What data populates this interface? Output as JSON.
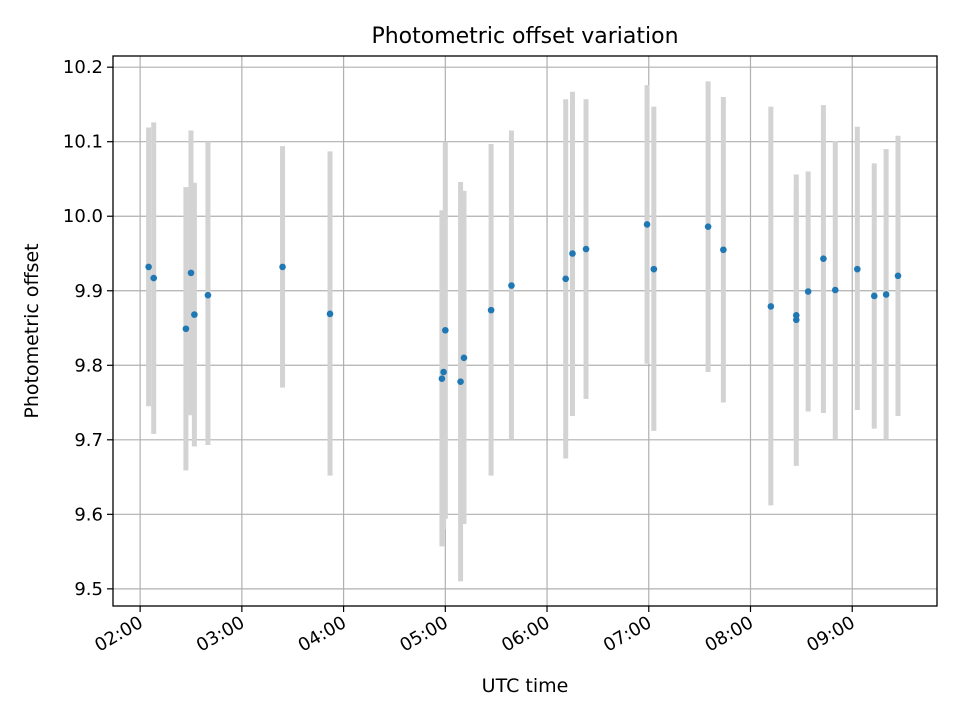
{
  "chart_data": {
    "type": "scatter",
    "title": "Photometric offset variation",
    "xlabel": "UTC time",
    "ylabel": "Photometric offset",
    "x_ticks": [
      "02:00",
      "03:00",
      "04:00",
      "05:00",
      "06:00",
      "07:00",
      "08:00",
      "09:00"
    ],
    "y_ticks": [
      "9.5",
      "9.6",
      "9.7",
      "9.8",
      "9.9",
      "10.0",
      "10.1",
      "10.2"
    ],
    "xlim": [
      "01:44",
      "09:50"
    ],
    "ylim": [
      9.477,
      10.215
    ],
    "grid": true,
    "legend": false,
    "colors": {
      "point": "#1f77b4",
      "errorbar": "#d3d3d3",
      "grid": "#b0b0b0"
    },
    "points": [
      {
        "x": "02:05",
        "y": 9.932,
        "ylow": 9.745,
        "yhigh": 10.119
      },
      {
        "x": "02:08",
        "y": 9.917,
        "ylow": 9.708,
        "yhigh": 10.126
      },
      {
        "x": "02:27",
        "y": 9.849,
        "ylow": 9.659,
        "yhigh": 10.039
      },
      {
        "x": "02:30",
        "y": 9.924,
        "ylow": 9.733,
        "yhigh": 10.115
      },
      {
        "x": "02:32",
        "y": 9.868,
        "ylow": 9.691,
        "yhigh": 10.045
      },
      {
        "x": "02:40",
        "y": 9.894,
        "ylow": 9.693,
        "yhigh": 10.1
      },
      {
        "x": "03:24",
        "y": 9.932,
        "ylow": 9.77,
        "yhigh": 10.094
      },
      {
        "x": "03:52",
        "y": 9.869,
        "ylow": 9.652,
        "yhigh": 10.087
      },
      {
        "x": "04:58",
        "y": 9.782,
        "ylow": 9.557,
        "yhigh": 10.008
      },
      {
        "x": "04:59",
        "y": 9.791,
        "ylow": 9.58,
        "yhigh": 10.002
      },
      {
        "x": "05:00",
        "y": 9.847,
        "ylow": 9.594,
        "yhigh": 10.1
      },
      {
        "x": "05:09",
        "y": 9.778,
        "ylow": 9.51,
        "yhigh": 10.046
      },
      {
        "x": "05:11",
        "y": 9.81,
        "ylow": 9.587,
        "yhigh": 10.034
      },
      {
        "x": "05:27",
        "y": 9.874,
        "ylow": 9.652,
        "yhigh": 10.097
      },
      {
        "x": "05:39",
        "y": 9.907,
        "ylow": 9.7,
        "yhigh": 10.115
      },
      {
        "x": "06:11",
        "y": 9.916,
        "ylow": 9.675,
        "yhigh": 10.157
      },
      {
        "x": "06:15",
        "y": 9.95,
        "ylow": 9.732,
        "yhigh": 10.167
      },
      {
        "x": "06:23",
        "y": 9.956,
        "ylow": 9.755,
        "yhigh": 10.157
      },
      {
        "x": "06:59",
        "y": 9.989,
        "ylow": 9.802,
        "yhigh": 10.176
      },
      {
        "x": "07:03",
        "y": 9.929,
        "ylow": 9.712,
        "yhigh": 10.147
      },
      {
        "x": "07:35",
        "y": 9.986,
        "ylow": 9.791,
        "yhigh": 10.181
      },
      {
        "x": "07:44",
        "y": 9.955,
        "ylow": 9.75,
        "yhigh": 10.16
      },
      {
        "x": "08:12",
        "y": 9.879,
        "ylow": 9.612,
        "yhigh": 10.147
      },
      {
        "x": "08:27",
        "y": 9.861,
        "ylow": 9.665,
        "yhigh": 10.056
      },
      {
        "x": "08:27",
        "y": 9.867,
        "ylow": 9.7,
        "yhigh": 10.034
      },
      {
        "x": "08:34",
        "y": 9.899,
        "ylow": 9.738,
        "yhigh": 10.06
      },
      {
        "x": "08:43",
        "y": 9.943,
        "ylow": 9.736,
        "yhigh": 10.149
      },
      {
        "x": "08:50",
        "y": 9.901,
        "ylow": 9.7,
        "yhigh": 10.101
      },
      {
        "x": "09:03",
        "y": 9.929,
        "ylow": 9.74,
        "yhigh": 10.12
      },
      {
        "x": "09:13",
        "y": 9.893,
        "ylow": 9.715,
        "yhigh": 10.071
      },
      {
        "x": "09:20",
        "y": 9.895,
        "ylow": 9.7,
        "yhigh": 10.09
      },
      {
        "x": "09:27",
        "y": 9.92,
        "ylow": 9.732,
        "yhigh": 10.108
      }
    ]
  }
}
